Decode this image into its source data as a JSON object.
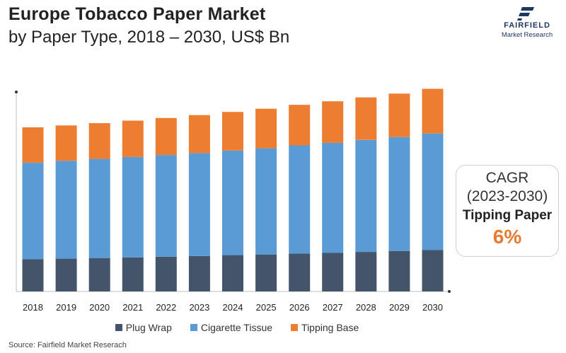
{
  "header": {
    "title_line1": "Europe Tobacco Paper Market",
    "title_line2": "by Paper Type, 2018 – 2030, US$ Bn"
  },
  "logo": {
    "name": "FAIRFIELD",
    "subtitle": "Market Research",
    "icon": "fairfield-logo-icon"
  },
  "cagr": {
    "label": "CAGR",
    "period": "(2023-2030)",
    "segment": "Tipping Paper",
    "value": "6%"
  },
  "source": "Source: Fairfield Market Reserach",
  "colors": {
    "plug_wrap": "#44546a",
    "cigarette_tissue": "#5b9bd5",
    "tipping_base": "#ed7d31",
    "accent": "#e87a30"
  },
  "chart_data": {
    "type": "bar",
    "stacked": true,
    "categories": [
      "2018",
      "2019",
      "2020",
      "2021",
      "2022",
      "2023",
      "2024",
      "2025",
      "2026",
      "2027",
      "2028",
      "2029",
      "2030"
    ],
    "series": [
      {
        "name": "Plug Wrap",
        "color": "#44546a",
        "values": [
          1.0,
          1.02,
          1.04,
          1.06,
          1.08,
          1.1,
          1.13,
          1.15,
          1.18,
          1.2,
          1.23,
          1.26,
          1.29
        ]
      },
      {
        "name": "Cigarette Tissue",
        "color": "#5b9bd5",
        "values": [
          3.0,
          3.04,
          3.08,
          3.12,
          3.16,
          3.2,
          3.25,
          3.3,
          3.36,
          3.42,
          3.48,
          3.54,
          3.62
        ]
      },
      {
        "name": "Tipping Base",
        "color": "#ed7d31",
        "values": [
          1.1,
          1.1,
          1.11,
          1.13,
          1.15,
          1.18,
          1.2,
          1.23,
          1.26,
          1.29,
          1.32,
          1.35,
          1.39
        ]
      }
    ],
    "ylim": [
      0,
      6.2
    ],
    "xlabel": "",
    "ylabel": "",
    "grid": false,
    "legend": "bottom"
  }
}
